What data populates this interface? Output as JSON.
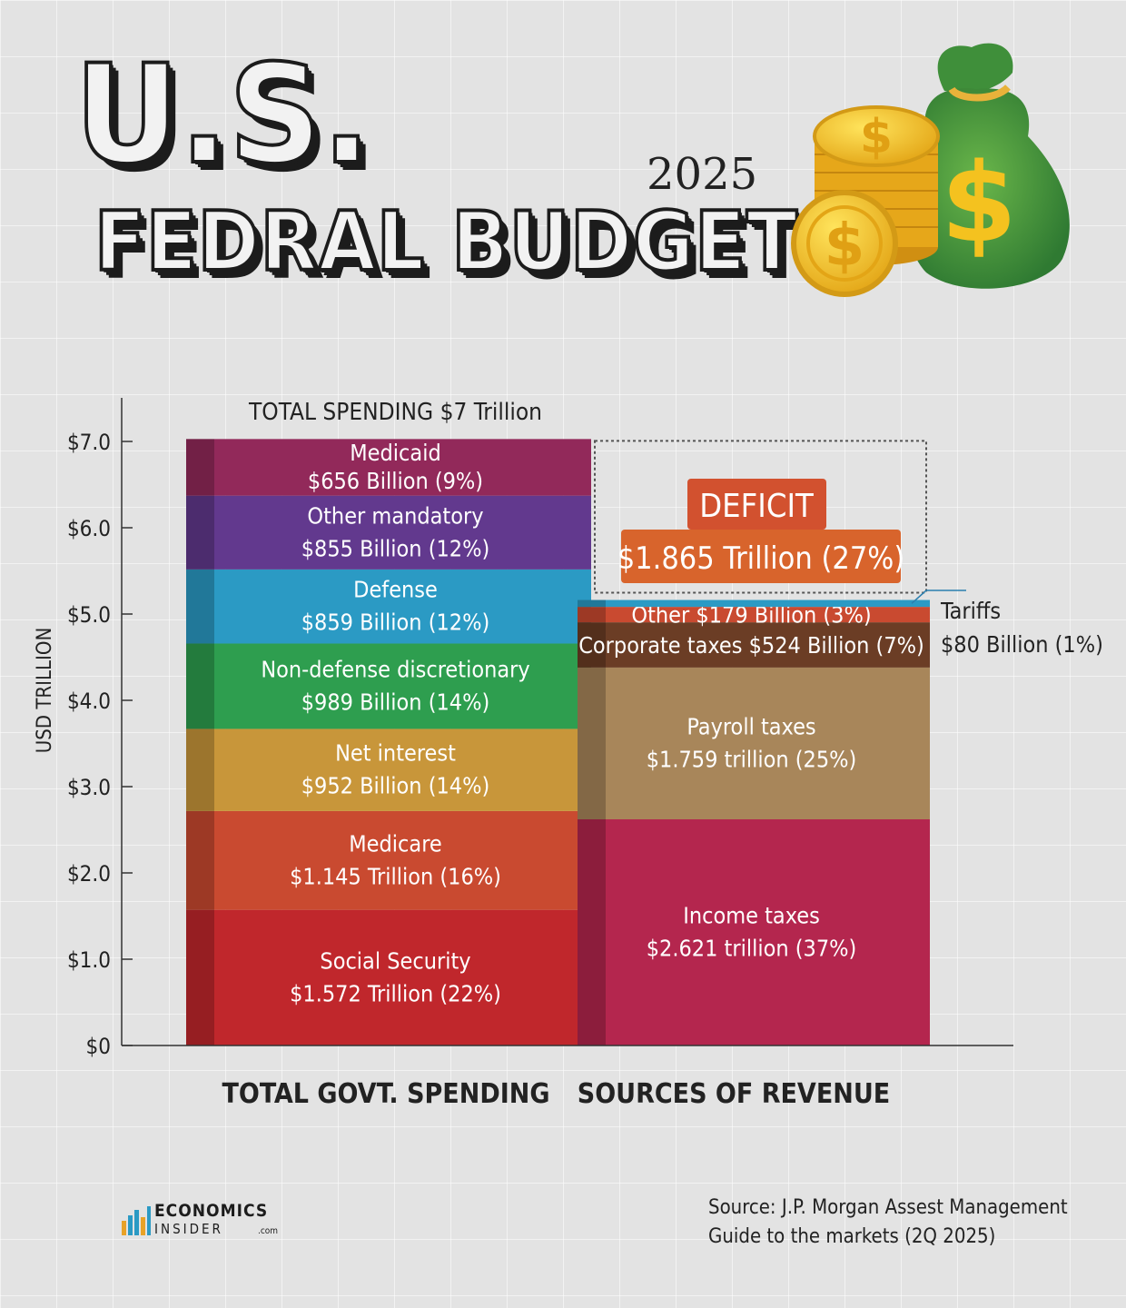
{
  "header": {
    "title_line1": "U.S.",
    "title_line2": "FEDRAL  BUDGET",
    "year": "2025"
  },
  "chart_data": {
    "type": "stacked-bar",
    "ylabel": "USD TRILLION",
    "ylim": [
      0,
      7
    ],
    "yticks": [
      {
        "value": 0,
        "label": "$0"
      },
      {
        "value": 1,
        "label": "$1.0"
      },
      {
        "value": 2,
        "label": "$2.0"
      },
      {
        "value": 3,
        "label": "$3.0"
      },
      {
        "value": 4,
        "label": "$4.0"
      },
      {
        "value": 5,
        "label": "$5.0"
      },
      {
        "value": 6,
        "label": "$6.0"
      },
      {
        "value": 7,
        "label": "$7.0"
      }
    ],
    "spending_title": "TOTAL SPENDING $7 Trillion",
    "categories": [
      "TOTAL GOVT. SPENDING",
      "SOURCES OF REVENUE"
    ],
    "spending": [
      {
        "name": "Social Security",
        "value": 1.572,
        "line1": "Social Security",
        "line2": "$1.572 Trillion (22%)",
        "color": "#c0272c"
      },
      {
        "name": "Medicare",
        "value": 1.145,
        "line1": "Medicare",
        "line2": "$1.145 Trillion (16%)",
        "color": "#c94a30"
      },
      {
        "name": "Net interest",
        "value": 0.952,
        "line1": "Net interest",
        "line2": "$952 Billion (14%)",
        "color": "#c8963a"
      },
      {
        "name": "Non-defense discretionary",
        "value": 0.989,
        "line1": "Non-defense discretionary",
        "line2": "$989 Billion (14%)",
        "color": "#2e9e4f"
      },
      {
        "name": "Defense",
        "value": 0.859,
        "line1": "Defense",
        "line2": "$859 Billion (12%)",
        "color": "#2b9ac4"
      },
      {
        "name": "Other mandatory",
        "value": 0.855,
        "line1": "Other mandatory",
        "line2": "$855 Billion (12%)",
        "color": "#62398e"
      },
      {
        "name": "Medicaid",
        "value": 0.656,
        "line1": "Medicaid",
        "line2": "$656 Billion (9%)",
        "color": "#92295a"
      }
    ],
    "revenue": [
      {
        "name": "Income taxes",
        "value": 2.621,
        "line1": "Income taxes",
        "line2": "$2.621 trillion (37%)",
        "color": "#b4264e"
      },
      {
        "name": "Payroll taxes",
        "value": 1.759,
        "line1": "Payroll taxes",
        "line2": "$1.759 trillion (25%)",
        "color": "#a8865a"
      },
      {
        "name": "Corporate taxes",
        "value": 0.524,
        "line1": "Corporate taxes $524 Billion (7%)",
        "color": "#6b3d25"
      },
      {
        "name": "Other",
        "value": 0.179,
        "line1": "Other  $179 Billion  (3%)",
        "color": "#c94a30"
      },
      {
        "name": "Tariffs",
        "value": 0.08,
        "color": "#2b9ac4"
      }
    ],
    "tariffs_label": {
      "line1": "Tariffs",
      "line2": "$80 Billion (1%)"
    },
    "deficit": {
      "value": 1.865,
      "label": "DEFICIT",
      "amount": "$1.865 Trillion (27%)"
    }
  },
  "footer": {
    "logo_line1": "ECONOMICS",
    "logo_line2": "INSIDER",
    "logo_suffix": ".com",
    "source_line1": "Source: J.P. Morgan Assest Management",
    "source_line2": "Guide to the markets (2Q 2025)"
  }
}
